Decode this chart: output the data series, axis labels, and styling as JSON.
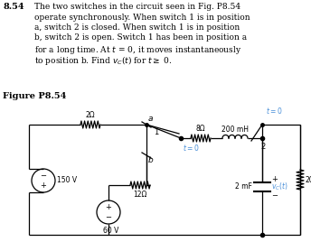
{
  "background_color": "#ffffff",
  "fig_width": 3.44,
  "fig_height": 2.68,
  "dpi": 100,
  "text_color": "#4a4a4a",
  "cyan_color": "#4a90d9",
  "problem_num": "8.54",
  "lines": [
    "The two switches in the circuit seen in Fig. P8.54",
    "operate synchronously. When switch 1 is in position",
    "a, switch 2 is closed. When switch 1 is in position",
    "b, switch 2 is open. Switch 1 has been in position a",
    "for a long time. At t = 0, it moves instantaneously",
    "to position b. Find v_C(t) for t >= 0."
  ],
  "fig_label": "Figure P8.54"
}
